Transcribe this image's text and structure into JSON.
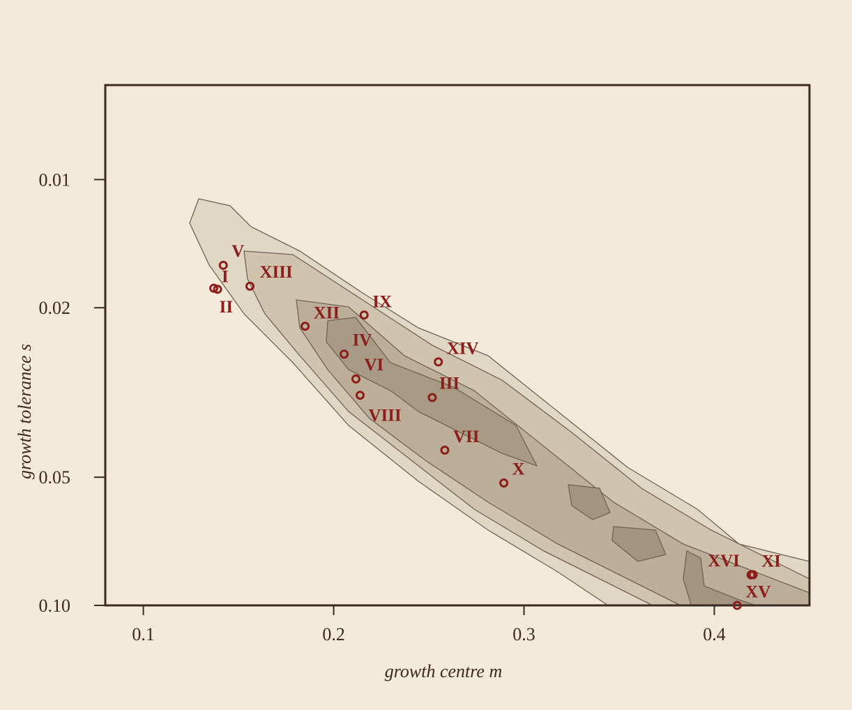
{
  "chart_data": {
    "type": "scatter",
    "x_label": "growth centre  m",
    "y_label": "growth tolerance  s",
    "xlim": [
      0.08,
      0.45
    ],
    "xticks": [
      0.1,
      0.2,
      0.3,
      0.4
    ],
    "ylim": [
      0.006,
      0.1
    ],
    "y_log": true,
    "y_inverted": true,
    "yticks": [
      {
        "value": 0.01,
        "label": "0.01"
      },
      {
        "value": 0.02,
        "label": "0.02"
      },
      {
        "value": 0.05,
        "label": "0.05"
      },
      {
        "value": 0.1,
        "label": "0.10"
      }
    ],
    "color": "#8b1e1a",
    "labels": [
      "V",
      "I",
      "II",
      "XIII",
      "XII",
      "IX",
      "IV",
      "VI",
      "VIII",
      "XIV",
      "III",
      "VII",
      "X",
      "XVI",
      "XI",
      "XV"
    ],
    "x": [
      0.142,
      0.139,
      0.137,
      0.156,
      0.185,
      0.216,
      0.2055,
      0.2117,
      0.2139,
      0.255,
      0.2518,
      0.2584,
      0.2894,
      0.4193,
      0.4204,
      0.412
    ],
    "y": [
      0.0159,
      0.0181,
      0.018,
      0.0178,
      0.0221,
      0.0208,
      0.0257,
      0.0294,
      0.0321,
      0.0268,
      0.0325,
      0.0432,
      0.0516,
      0.0848,
      0.0847,
      0.1
    ]
  }
}
